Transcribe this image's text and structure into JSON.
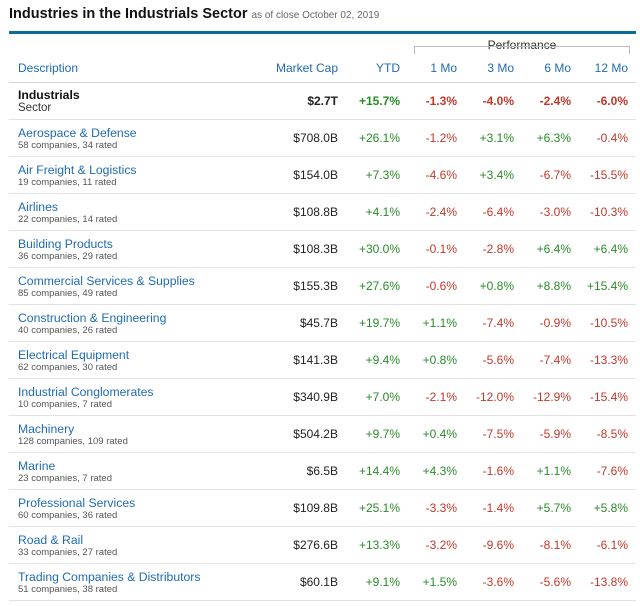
{
  "header": {
    "title": "Industries in the Industrials Sector",
    "as_of": "as of close October 02, 2019"
  },
  "table": {
    "group_label": "Performance",
    "columns": {
      "description": "Description",
      "market_cap": "Market Cap",
      "ytd": "YTD",
      "m1": "1 Mo",
      "m3": "3 Mo",
      "m6": "6 Mo",
      "m12": "12 Mo"
    },
    "rows": [
      {
        "name": "Industrials",
        "sub": "Sector",
        "market_cap": "$2.7T",
        "ytd": "+15.7%",
        "m1": "-1.3%",
        "m3": "-4.0%",
        "m6": "-2.4%",
        "m12": "-6.0%"
      },
      {
        "name": "Aerospace & Defense",
        "sub": "58 companies, 34 rated",
        "market_cap": "$708.0B",
        "ytd": "+26.1%",
        "m1": "-1.2%",
        "m3": "+3.1%",
        "m6": "+6.3%",
        "m12": "-0.4%"
      },
      {
        "name": "Air Freight & Logistics",
        "sub": "19 companies, 11 rated",
        "market_cap": "$154.0B",
        "ytd": "+7.3%",
        "m1": "-4.6%",
        "m3": "+3.4%",
        "m6": "-6.7%",
        "m12": "-15.5%"
      },
      {
        "name": "Airlines",
        "sub": "22 companies, 14 rated",
        "market_cap": "$108.8B",
        "ytd": "+4.1%",
        "m1": "-2.4%",
        "m3": "-6.4%",
        "m6": "-3.0%",
        "m12": "-10.3%"
      },
      {
        "name": "Building Products",
        "sub": "36 companies, 29 rated",
        "market_cap": "$108.3B",
        "ytd": "+30.0%",
        "m1": "-0.1%",
        "m3": "-2.8%",
        "m6": "+6.4%",
        "m12": "+6.4%"
      },
      {
        "name": "Commercial Services & Supplies",
        "sub": "85 companies, 49 rated",
        "market_cap": "$155.3B",
        "ytd": "+27.6%",
        "m1": "-0.6%",
        "m3": "+0.8%",
        "m6": "+8.8%",
        "m12": "+15.4%"
      },
      {
        "name": "Construction & Engineering",
        "sub": "40 companies, 26 rated",
        "market_cap": "$45.7B",
        "ytd": "+19.7%",
        "m1": "+1.1%",
        "m3": "-7.4%",
        "m6": "-0.9%",
        "m12": "-10.5%"
      },
      {
        "name": "Electrical Equipment",
        "sub": "62 companies, 30 rated",
        "market_cap": "$141.3B",
        "ytd": "+9.4%",
        "m1": "+0.8%",
        "m3": "-5.6%",
        "m6": "-7.4%",
        "m12": "-13.3%"
      },
      {
        "name": "Industrial Conglomerates",
        "sub": "10 companies, 7 rated",
        "market_cap": "$340.9B",
        "ytd": "+7.0%",
        "m1": "-2.1%",
        "m3": "-12.0%",
        "m6": "-12.9%",
        "m12": "-15.4%"
      },
      {
        "name": "Machinery",
        "sub": "128 companies, 109 rated",
        "market_cap": "$504.2B",
        "ytd": "+9.7%",
        "m1": "+0.4%",
        "m3": "-7.5%",
        "m6": "-5.9%",
        "m12": "-8.5%"
      },
      {
        "name": "Marine",
        "sub": "23 companies, 7 rated",
        "market_cap": "$6.5B",
        "ytd": "+14.4%",
        "m1": "+4.3%",
        "m3": "-1.6%",
        "m6": "+1.1%",
        "m12": "-7.6%"
      },
      {
        "name": "Professional Services",
        "sub": "60 companies, 36 rated",
        "market_cap": "$109.8B",
        "ytd": "+25.1%",
        "m1": "-3.3%",
        "m3": "-1.4%",
        "m6": "+5.7%",
        "m12": "+5.8%"
      },
      {
        "name": "Road & Rail",
        "sub": "33 companies, 27 rated",
        "market_cap": "$276.6B",
        "ytd": "+13.3%",
        "m1": "-3.2%",
        "m3": "-9.6%",
        "m6": "-8.1%",
        "m12": "-6.1%"
      },
      {
        "name": "Trading Companies & Distributors",
        "sub": "51 companies, 38 rated",
        "market_cap": "$60.1B",
        "ytd": "+9.1%",
        "m1": "+1.5%",
        "m3": "-3.6%",
        "m6": "-5.6%",
        "m12": "-13.8%"
      }
    ]
  },
  "colors": {
    "accent": "#0b6d97",
    "link": "#1f6bb3",
    "positive": "#2a8a2a",
    "negative": "#c0392b"
  }
}
